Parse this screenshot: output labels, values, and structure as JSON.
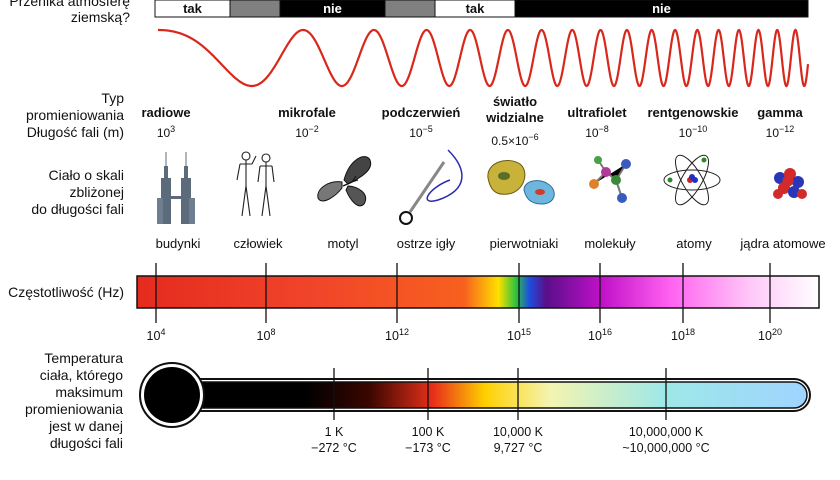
{
  "penetration": {
    "label_line1": "Przenika atmosferę",
    "label_line2": "ziemską?",
    "segments": [
      "tak",
      "",
      "nie",
      "",
      "tak",
      "nie"
    ],
    "segment_colors": [
      "#ffffff",
      "#808080",
      "#000000",
      "#808080",
      "#ffffff",
      "#000000"
    ]
  },
  "radiation": {
    "type_label": "Typ",
    "type_label2": "promieniowania",
    "wavelength_label": "Długość fali (m)",
    "types": [
      {
        "name": "radiowe",
        "name2": "",
        "base": "10",
        "exp": "3"
      },
      {
        "name": "mikrofale",
        "name2": "",
        "base": "10",
        "exp": "−2"
      },
      {
        "name": "podczerwień",
        "name2": "",
        "base": "10",
        "exp": "−5"
      },
      {
        "name": "światło",
        "name2": "widzialne",
        "base": "0.5×10",
        "exp": "−6"
      },
      {
        "name": "ultrafiolet",
        "name2": "",
        "base": "10",
        "exp": "−8"
      },
      {
        "name": "rentgenowskie",
        "name2": "",
        "base": "10",
        "exp": "−10"
      },
      {
        "name": "gamma",
        "name2": "",
        "base": "10",
        "exp": "−12"
      }
    ]
  },
  "scale": {
    "label_line1": "Ciało o skali",
    "label_line2": "zbliżonej",
    "label_line3": "do długości fali",
    "objects": [
      "budynki",
      "człowiek",
      "motyl",
      "ostrze igły",
      "pierwotniaki",
      "molekuły",
      "atomy",
      "jądra atomowe"
    ],
    "icons": [
      "building-icon",
      "humans-icon",
      "butterfly-icon",
      "needle-icon",
      "protozoa-icon",
      "molecule-icon",
      "atom-icon",
      "nucleus-icon"
    ]
  },
  "frequency": {
    "label": "Częstotliwość (Hz)",
    "ticks": [
      {
        "base": "10",
        "exp": "4"
      },
      {
        "base": "10",
        "exp": "8"
      },
      {
        "base": "10",
        "exp": "12"
      },
      {
        "base": "10",
        "exp": "15"
      },
      {
        "base": "10",
        "exp": "16"
      },
      {
        "base": "10",
        "exp": "18"
      },
      {
        "base": "10",
        "exp": "20"
      }
    ],
    "gradient_colors": [
      "#e52b1e",
      "#f0442a",
      "#f8601e",
      "#ffe000",
      "#2fc53a",
      "#1c4fe0",
      "#5a0e8a",
      "#c010c8",
      "#ff60f0",
      "#ffc8f8",
      "#ffffff"
    ]
  },
  "temperature": {
    "label_lines": [
      "Temperatura",
      "ciała, którego",
      "maksimum",
      "promieniowania",
      "jest w danej",
      "długości fali"
    ],
    "ticks": [
      {
        "k": "1 K",
        "c": "−272 °C"
      },
      {
        "k": "100 K",
        "c": "−173 °C"
      },
      {
        "k": "10,000 K",
        "c": "9,727 °C"
      },
      {
        "k": "10,000,000 K",
        "c": "~10,000,000 °C"
      }
    ],
    "gradient_colors": [
      "#000000",
      "#2a0000",
      "#e8301a",
      "#ffd000",
      "#f4f4b0",
      "#9ee8e8",
      "#9fd4ff"
    ]
  },
  "wave": {
    "color": "#d8281c"
  }
}
